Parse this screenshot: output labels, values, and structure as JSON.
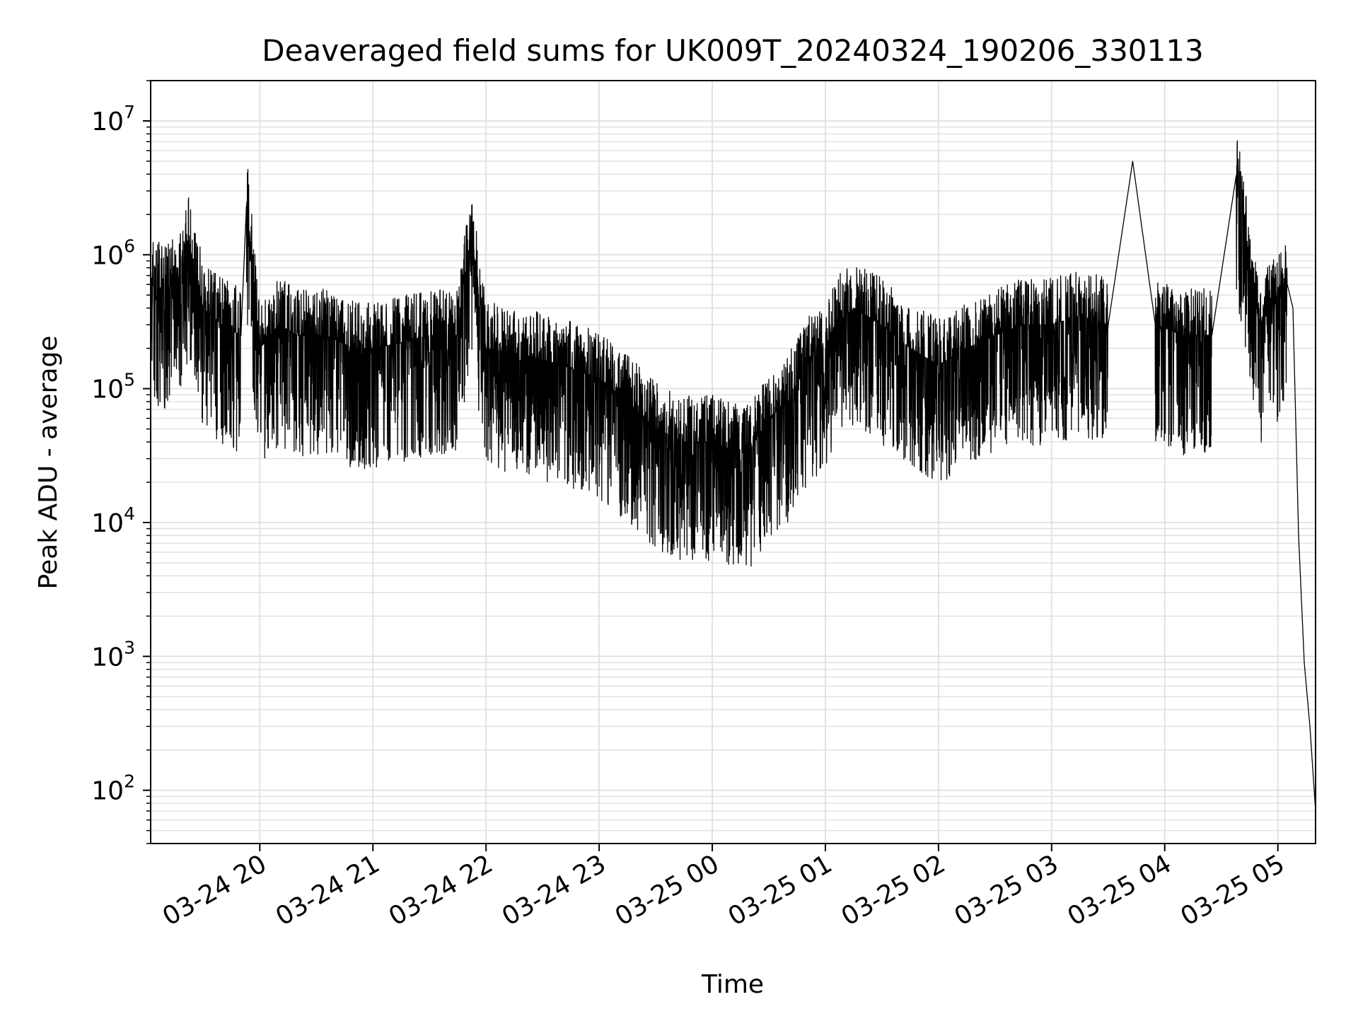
{
  "chart_data": {
    "type": "line",
    "title": "Deaveraged field sums for UK009T_20240324_190206_330113",
    "xlabel": "Time",
    "ylabel": "Peak ADU - average",
    "yscale": "log",
    "ylim": [
      40,
      20000000
    ],
    "xlim": [
      "2024-03-24 19:02:06",
      "2024-03-25 05:20:00"
    ],
    "grid": true,
    "line_color": "#000000",
    "grid_color": "#e0e0e0",
    "x_ticks": [
      {
        "label": "03-24 20",
        "t": "2024-03-24 20:00"
      },
      {
        "label": "03-24 21",
        "t": "2024-03-24 21:00"
      },
      {
        "label": "03-24 22",
        "t": "2024-03-24 22:00"
      },
      {
        "label": "03-24 23",
        "t": "2024-03-24 23:00"
      },
      {
        "label": "03-25 00",
        "t": "2024-03-25 00:00"
      },
      {
        "label": "03-25 01",
        "t": "2024-03-25 01:00"
      },
      {
        "label": "03-25 02",
        "t": "2024-03-25 02:00"
      },
      {
        "label": "03-25 03",
        "t": "2024-03-25 03:00"
      },
      {
        "label": "03-25 04",
        "t": "2024-03-25 04:00"
      },
      {
        "label": "03-25 05",
        "t": "2024-03-25 05:00"
      }
    ],
    "y_ticks": [
      {
        "base": "10",
        "exp": "2",
        "value": 100
      },
      {
        "base": "10",
        "exp": "3",
        "value": 1000
      },
      {
        "base": "10",
        "exp": "4",
        "value": 10000
      },
      {
        "base": "10",
        "exp": "5",
        "value": 100000
      },
      {
        "base": "10",
        "exp": "6",
        "value": 1000000
      },
      {
        "base": "10",
        "exp": "7",
        "value": 10000000
      }
    ],
    "series": [
      {
        "x": [
          "2024-03-24 19:02",
          "2024-03-24 19:10",
          "2024-03-24 19:18",
          "2024-03-24 19:22",
          "2024-03-24 19:30",
          "2024-03-24 19:40",
          "2024-03-24 19:50",
          "2024-03-24 19:53",
          "2024-03-24 20:00",
          "2024-03-24 20:10",
          "2024-03-24 20:20",
          "2024-03-24 20:35",
          "2024-03-24 20:50",
          "2024-03-24 21:00",
          "2024-03-24 21:15",
          "2024-03-24 21:30",
          "2024-03-24 21:45",
          "2024-03-24 21:52",
          "2024-03-24 22:00",
          "2024-03-24 22:20",
          "2024-03-24 22:40",
          "2024-03-24 23:00",
          "2024-03-24 23:15",
          "2024-03-24 23:30",
          "2024-03-24 23:45",
          "2024-03-25 00:00",
          "2024-03-25 00:10",
          "2024-03-25 00:20",
          "2024-03-25 00:30",
          "2024-03-25 00:40",
          "2024-03-25 00:50",
          "2024-03-25 01:00",
          "2024-03-25 01:05",
          "2024-03-25 01:15",
          "2024-03-25 01:30",
          "2024-03-25 01:45",
          "2024-03-25 02:00",
          "2024-03-25 02:15",
          "2024-03-25 02:30",
          "2024-03-25 02:45",
          "2024-03-25 03:00",
          "2024-03-25 03:15",
          "2024-03-25 03:30",
          "2024-03-25 03:43",
          "2024-03-25 03:55",
          "2024-03-25 04:10",
          "2024-03-25 04:25",
          "2024-03-25 04:38",
          "2024-03-25 04:50",
          "2024-03-25 05:00",
          "2024-03-25 05:05",
          "2024-03-25 05:08",
          "2024-03-25 05:11",
          "2024-03-25 05:14",
          "2024-03-25 05:17",
          "2024-03-25 05:20"
        ],
        "y": [
          600000,
          550000,
          650000,
          1300000,
          400000,
          300000,
          250000,
          2500000,
          200000,
          300000,
          250000,
          250000,
          200000,
          200000,
          220000,
          250000,
          250000,
          1500000,
          200000,
          180000,
          150000,
          120000,
          80000,
          50000,
          40000,
          40000,
          35000,
          35000,
          60000,
          80000,
          150000,
          200000,
          300000,
          400000,
          300000,
          200000,
          150000,
          200000,
          250000,
          300000,
          300000,
          350000,
          300000,
          5000000,
          300000,
          250000,
          250000,
          4000000,
          300000,
          450000,
          600000,
          400000,
          8000,
          900,
          300,
          70
        ]
      }
    ]
  }
}
